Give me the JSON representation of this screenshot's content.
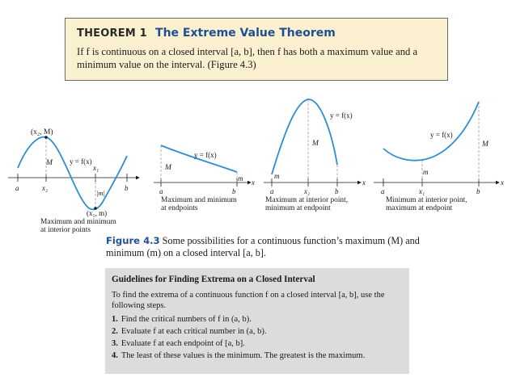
{
  "theorem": {
    "label": "THEOREM 1",
    "title": "The Extreme Value Theorem",
    "body_line1": "If f is continuous on a closed interval [a, b], then f has both a maximum value and a",
    "body_line2": "minimum value on the interval. (Figure 4.3)"
  },
  "panels": [
    {
      "point_max": "(x₂, M)",
      "label_M": "M",
      "label_f": "y = f(x)",
      "label_x1": "x₁",
      "label_m": "|m|",
      "point_min": "(x₁, m)",
      "label_a": "a",
      "label_x2": "x₂",
      "label_b": "b",
      "caption_line1": "Maximum and minimum",
      "caption_line2": "at interior points"
    },
    {
      "label_f": "y = f(x)",
      "label_M": "M",
      "label_m": "m",
      "label_a": "a",
      "label_b": "b",
      "label_x": "x",
      "caption_line1": "Maximum and minimum",
      "caption_line2": "at endpoints"
    },
    {
      "label_f": "y = f(x)",
      "label_M": "M",
      "label_m": "m",
      "label_a": "a",
      "label_x2": "x₂",
      "label_b": "b",
      "label_x": "x",
      "caption_line1": "Maximum at interior point,",
      "caption_line2": "minimum at endpoint"
    },
    {
      "label_f": "y = f(x)",
      "label_M": "M",
      "label_m": "m",
      "label_a": "a",
      "label_x1": "x₁",
      "label_b": "b",
      "label_x": "x",
      "caption_line1": "Minimum at interior point,",
      "caption_line2": "maximum at endpoint"
    }
  ],
  "figure_caption": {
    "number": "Figure 4.3",
    "text": "Some possibilities for a continuous function’s maximum (M) and minimum (m) on a closed interval [a, b]."
  },
  "guidelines": {
    "title": "Guidelines for Finding Extrema on a Closed Interval",
    "intro": "To find the extrema of a continuous function f on a closed interval [a, b], use the following steps.",
    "steps": [
      {
        "num": "1.",
        "text": "Find the critical numbers of f in (a, b)."
      },
      {
        "num": "2.",
        "text": "Evaluate f at each critical number in (a, b)."
      },
      {
        "num": "3.",
        "text": "Evaluate f at each endpoint of [a, b]."
      },
      {
        "num": "4.",
        "text": "The least of these values is the minimum. The greatest is the maximum."
      }
    ]
  },
  "colors": {
    "curve": "#2b8fd0",
    "title_blue": "#1f4f93",
    "theorem_bg": "#fbf0cf",
    "guide_bg": "#dcdcdc"
  }
}
